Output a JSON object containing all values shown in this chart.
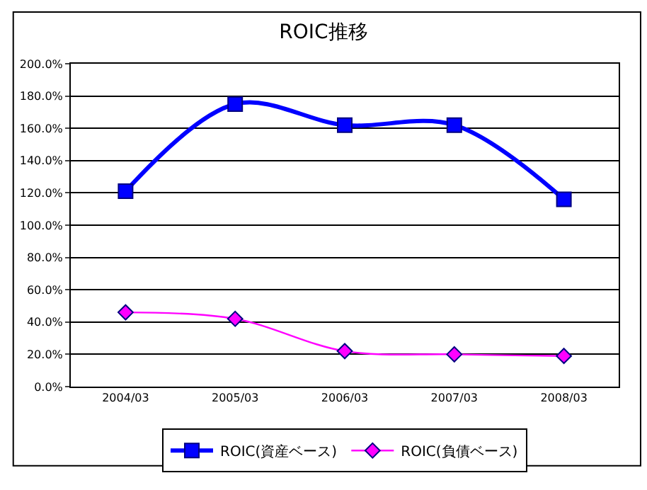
{
  "chart_data": {
    "type": "line",
    "title": "ROIC推移",
    "categories": [
      "2004/03",
      "2005/03",
      "2006/03",
      "2007/03",
      "2008/03"
    ],
    "series": [
      {
        "name": "ROIC(資産ベース)",
        "color": "#0000ff",
        "marker": "square",
        "values": [
          121,
          175,
          162,
          162,
          116
        ]
      },
      {
        "name": "ROIC(負債ベース)",
        "color": "#ff00ff",
        "marker": "diamond",
        "values": [
          46,
          42,
          22,
          20,
          19
        ]
      }
    ],
    "ylim": [
      0,
      200
    ],
    "yticks": [
      {
        "value": 0,
        "label": "0.0%"
      },
      {
        "value": 20,
        "label": "20.0%"
      },
      {
        "value": 40,
        "label": "40.0%"
      },
      {
        "value": 60,
        "label": "60.0%"
      },
      {
        "value": 80,
        "label": "80.0%"
      },
      {
        "value": 100,
        "label": "100.0%"
      },
      {
        "value": 120,
        "label": "120.0%"
      },
      {
        "value": 140,
        "label": "140.0%"
      },
      {
        "value": 160,
        "label": "160.0%"
      },
      {
        "value": 180,
        "label": "180.0%"
      },
      {
        "value": 200,
        "label": "200.0%"
      }
    ],
    "grid": "y",
    "legend": "bottom"
  }
}
